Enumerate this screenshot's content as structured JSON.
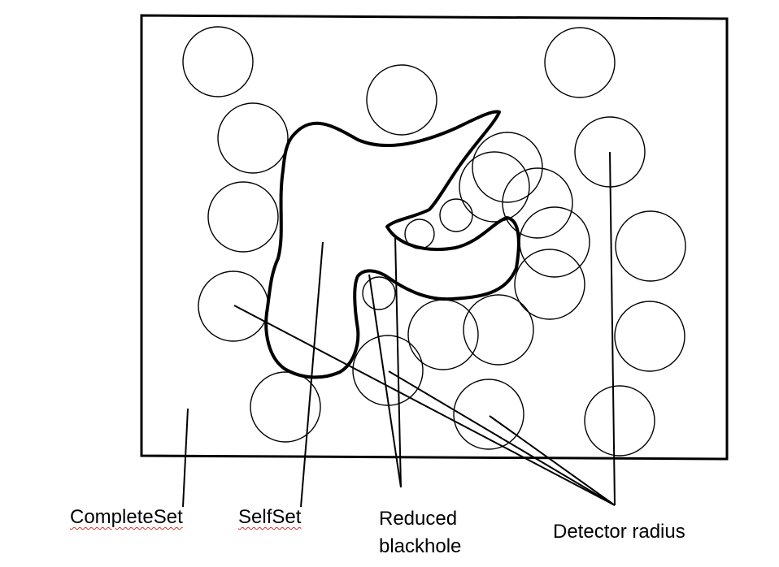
{
  "labels": {
    "complete_set": "CompleteSet",
    "self_set": "SelfSet",
    "reduced_line1": "Reduced",
    "reduced_line2": "blackhole",
    "detector_radius": "Detector radius"
  },
  "colors": {
    "ink": "#000000",
    "background": "#ffffff",
    "spellcheck_underline": "#d32f2f"
  }
}
